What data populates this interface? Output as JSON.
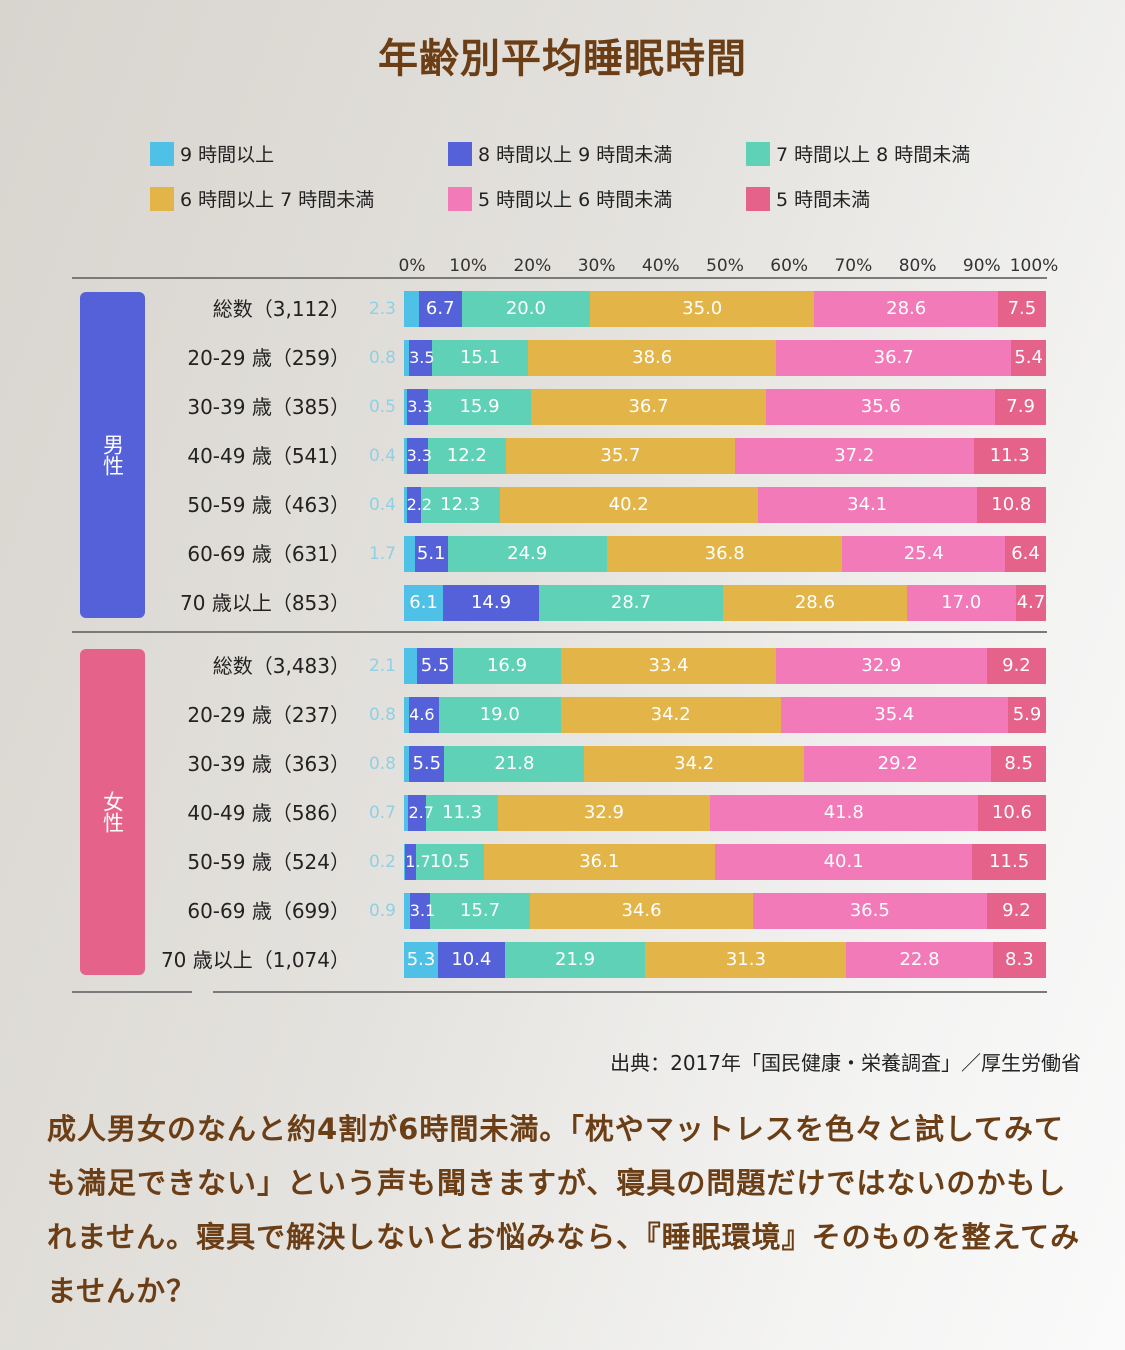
{
  "title": "年齢別平均睡眠時間",
  "colors": {
    "c9plus": "#4fc1e6",
    "c8to9": "#5561d8",
    "c7to8": "#5ed1b6",
    "c6to7": "#e3b548",
    "c5to6": "#f27ab9",
    "cunder5": "#e5628a",
    "male_box": "#5561d8",
    "female_box": "#e5628a"
  },
  "legend": [
    {
      "label": "9 時間以上",
      "color": "#4fc1e6"
    },
    {
      "label": "8 時間以上 9 時間未満",
      "color": "#5561d8"
    },
    {
      "label": "7 時間以上 8 時間未満",
      "color": "#5ed1b6"
    },
    {
      "label": "6 時間以上 7 時間未満",
      "color": "#e3b548"
    },
    {
      "label": "5 時間以上 6 時間未満",
      "color": "#f27ab9"
    },
    {
      "label": "5 時間未満",
      "color": "#e5628a"
    }
  ],
  "chart_data": {
    "type": "bar",
    "orientation": "horizontal",
    "stacked": "percent",
    "title": "年齢別平均睡眠時間",
    "x_ticks": [
      "0%",
      "10%",
      "20%",
      "30%",
      "40%",
      "50%",
      "60%",
      "70%",
      "80%",
      "90%",
      "100%"
    ],
    "xlim": [
      0,
      100
    ],
    "series_names": [
      "9 時間以上",
      "8 時間以上 9 時間未満",
      "7 時間以上 8 時間未満",
      "6 時間以上 7 時間未満",
      "5 時間以上 6 時間未満",
      "5 時間未満"
    ],
    "groups": [
      {
        "name": "男性",
        "rows": [
          {
            "label": "総数（3,112）",
            "values": [
              2.3,
              6.7,
              20.0,
              35.0,
              28.6,
              7.5
            ]
          },
          {
            "label": "20-29 歳（259）",
            "values": [
              0.8,
              3.5,
              15.1,
              38.6,
              36.7,
              5.4
            ]
          },
          {
            "label": "30-39 歳（385）",
            "values": [
              0.5,
              3.3,
              15.9,
              36.7,
              35.6,
              7.9
            ]
          },
          {
            "label": "40-49 歳（541）",
            "values": [
              0.4,
              3.3,
              12.2,
              35.7,
              37.2,
              11.3
            ]
          },
          {
            "label": "50-59 歳（463）",
            "values": [
              0.4,
              2.2,
              12.3,
              40.2,
              34.1,
              10.8
            ]
          },
          {
            "label": "60-69 歳（631）",
            "values": [
              1.7,
              5.1,
              24.9,
              36.8,
              25.4,
              6.4
            ]
          },
          {
            "label": "70 歳以上（853）",
            "values": [
              6.1,
              14.9,
              28.7,
              28.6,
              17.0,
              4.7
            ]
          }
        ]
      },
      {
        "name": "女性",
        "rows": [
          {
            "label": "総数（3,483）",
            "values": [
              2.1,
              5.5,
              16.9,
              33.4,
              32.9,
              9.2
            ]
          },
          {
            "label": "20-29 歳（237）",
            "values": [
              0.8,
              4.6,
              19.0,
              34.2,
              35.4,
              5.9
            ]
          },
          {
            "label": "30-39 歳（363）",
            "values": [
              0.8,
              5.5,
              21.8,
              34.2,
              29.2,
              8.5
            ]
          },
          {
            "label": "40-49 歳（586）",
            "values": [
              0.7,
              2.7,
              11.3,
              32.9,
              41.8,
              10.6
            ]
          },
          {
            "label": "50-59 歳（524）",
            "values": [
              0.2,
              1.7,
              10.5,
              36.1,
              40.1,
              11.5
            ]
          },
          {
            "label": "60-69 歳（699）",
            "values": [
              0.9,
              3.1,
              15.7,
              34.6,
              36.5,
              9.2
            ]
          },
          {
            "label": "70 歳以上（1,074）",
            "values": [
              5.3,
              10.4,
              21.9,
              31.3,
              22.8,
              8.3
            ]
          }
        ]
      }
    ],
    "xlabel": "",
    "ylabel": ""
  },
  "source": "出典：2017年「国民健康・栄養調査」／厚生労働省",
  "body_text": "成人男女のなんと約4割が6時間未満。「枕やマットレスを色々と試してみても満足できない」という声も聞きますが、寝具の問題だけではないのかもしれません。寝具で解決しないとお悩みなら、『睡眠環境』そのものを整えてみませんか？"
}
